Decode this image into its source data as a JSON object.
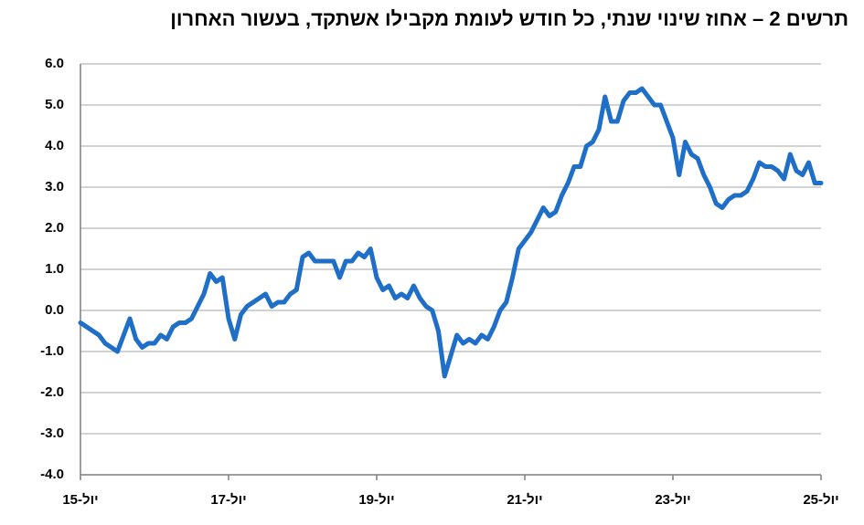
{
  "chart_data": {
    "type": "line",
    "title": "תרשים 2 – אחוז שינוי שנתי, כל חודש לעומת מקבילו אשתקד, בעשור האחרון",
    "categories": [
      "יול-15",
      null,
      null,
      null,
      null,
      null,
      null,
      null,
      null,
      null,
      null,
      null,
      null,
      null,
      null,
      null,
      null,
      null,
      null,
      null,
      null,
      null,
      null,
      null,
      "יול-17",
      null,
      null,
      null,
      null,
      null,
      null,
      null,
      null,
      null,
      null,
      null,
      null,
      null,
      null,
      null,
      null,
      null,
      null,
      null,
      null,
      null,
      null,
      null,
      "יול-19",
      null,
      null,
      null,
      null,
      null,
      null,
      null,
      null,
      null,
      null,
      null,
      null,
      null,
      null,
      null,
      null,
      null,
      null,
      null,
      null,
      null,
      null,
      null,
      "יול-21",
      null,
      null,
      null,
      null,
      null,
      null,
      null,
      null,
      null,
      null,
      null,
      null,
      null,
      null,
      null,
      null,
      null,
      null,
      null,
      null,
      null,
      null,
      null,
      "יול-23",
      null,
      null,
      null,
      null,
      null,
      null,
      null,
      null,
      null,
      null,
      null,
      null,
      null,
      null,
      null,
      null,
      null,
      null,
      null,
      null,
      null,
      null,
      null,
      "יול-25"
    ],
    "values": [
      -0.3,
      -0.4,
      -0.5,
      -0.6,
      -0.8,
      -0.9,
      -1.0,
      -0.6,
      -0.2,
      -0.7,
      -0.9,
      -0.8,
      -0.8,
      -0.6,
      -0.7,
      -0.4,
      -0.3,
      -0.3,
      -0.2,
      0.1,
      0.4,
      0.9,
      0.7,
      0.8,
      -0.2,
      -0.7,
      -0.1,
      0.1,
      0.2,
      0.3,
      0.4,
      0.1,
      0.2,
      0.2,
      0.4,
      0.5,
      1.3,
      1.4,
      1.2,
      1.2,
      1.2,
      1.2,
      0.8,
      1.2,
      1.2,
      1.4,
      1.3,
      1.5,
      0.8,
      0.5,
      0.6,
      0.3,
      0.4,
      0.3,
      0.6,
      0.3,
      0.1,
      0.0,
      -0.5,
      -1.6,
      -1.1,
      -0.6,
      -0.8,
      -0.7,
      -0.8,
      -0.6,
      -0.7,
      -0.4,
      0.0,
      0.2,
      0.8,
      1.5,
      1.7,
      1.9,
      2.2,
      2.5,
      2.3,
      2.4,
      2.8,
      3.1,
      3.5,
      3.5,
      4.0,
      4.1,
      4.4,
      5.2,
      4.6,
      4.6,
      5.1,
      5.3,
      5.3,
      5.4,
      5.2,
      5.0,
      5.0,
      4.6,
      4.2,
      3.3,
      4.1,
      3.8,
      3.7,
      3.3,
      3.0,
      2.6,
      2.5,
      2.7,
      2.8,
      2.8,
      2.9,
      3.2,
      3.6,
      3.5,
      3.5,
      3.4,
      3.2,
      3.8,
      3.4,
      3.3,
      3.6,
      3.1,
      3.1
    ],
    "color": "#1f6fc8",
    "ylim": [
      -4,
      6
    ],
    "yticks": [
      {
        "value": -4,
        "label": "-4.0"
      },
      {
        "value": -3,
        "label": "-3.0"
      },
      {
        "value": -2,
        "label": "-2.0"
      },
      {
        "value": -1,
        "label": "-1.0"
      },
      {
        "value": 0,
        "label": "0.0"
      },
      {
        "value": 1,
        "label": "1.0"
      },
      {
        "value": 2,
        "label": "2.0"
      },
      {
        "value": 3,
        "label": "3.0"
      },
      {
        "value": 4,
        "label": "4.0"
      },
      {
        "value": 5,
        "label": "5.0"
      },
      {
        "value": 6,
        "label": "6.0"
      }
    ],
    "grid": true
  }
}
